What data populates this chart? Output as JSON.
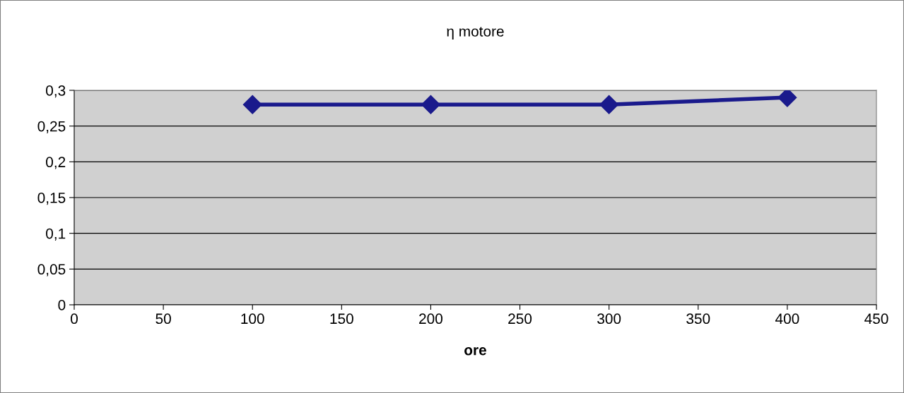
{
  "chart_data": {
    "type": "line",
    "title": "η motore",
    "xlabel": "ore",
    "x": [
      100,
      200,
      300,
      400
    ],
    "series": [
      {
        "color": "#1a1a8c",
        "values": [
          0.28,
          0.28,
          0.28,
          0.29
        ]
      }
    ],
    "xlim": [
      0,
      450
    ],
    "xticks": [
      0,
      50,
      100,
      150,
      200,
      250,
      300,
      350,
      400,
      450
    ],
    "ylim": [
      0,
      0.3
    ],
    "yticks": [
      {
        "value": 0,
        "label": "0"
      },
      {
        "value": 0.05,
        "label": "0,05"
      },
      {
        "value": 0.1,
        "label": "0,1"
      },
      {
        "value": 0.15,
        "label": "0,15"
      },
      {
        "value": 0.2,
        "label": "0,2"
      },
      {
        "value": 0.25,
        "label": "0,25"
      },
      {
        "value": 0.3,
        "label": "0,3"
      }
    ],
    "grid": "y",
    "marker": "diamond",
    "line_style": "solid",
    "legend": false
  }
}
